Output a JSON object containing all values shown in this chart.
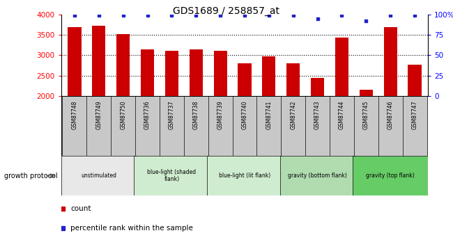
{
  "title": "GDS1689 / 258857_at",
  "samples": [
    "GSM87748",
    "GSM87749",
    "GSM87750",
    "GSM87736",
    "GSM87737",
    "GSM87738",
    "GSM87739",
    "GSM87740",
    "GSM87741",
    "GSM87742",
    "GSM87743",
    "GSM87744",
    "GSM87745",
    "GSM87746",
    "GSM87747"
  ],
  "counts": [
    3680,
    3720,
    3510,
    3140,
    3100,
    3140,
    3100,
    2800,
    2980,
    2800,
    2450,
    3440,
    2160,
    3680,
    2760
  ],
  "percentile_ranks": [
    99,
    99,
    99,
    99,
    99,
    99,
    99,
    99,
    99,
    99,
    95,
    99,
    92,
    99,
    99
  ],
  "bar_color": "#cc0000",
  "dot_color": "#2222cc",
  "ylim_left": [
    2000,
    4000
  ],
  "ylim_right": [
    0,
    100
  ],
  "yticks_left": [
    2000,
    2500,
    3000,
    3500,
    4000
  ],
  "yticks_right": [
    0,
    25,
    50,
    75,
    100
  ],
  "ytick_labels_right": [
    "0",
    "25",
    "50",
    "75",
    "100%"
  ],
  "grid_values": [
    2500,
    3000,
    3500
  ],
  "groups": [
    {
      "label": "unstimulated",
      "indices": [
        0,
        1,
        2
      ],
      "color": "#e8e8e8"
    },
    {
      "label": "blue-light (shaded\nflank)",
      "indices": [
        3,
        4,
        5
      ],
      "color": "#d0ecd0"
    },
    {
      "label": "blue-light (lit flank)",
      "indices": [
        6,
        7,
        8
      ],
      "color": "#d0ecd0"
    },
    {
      "label": "gravity (bottom flank)",
      "indices": [
        9,
        10,
        11
      ],
      "color": "#b0dcb0"
    },
    {
      "label": "gravity (top flank)",
      "indices": [
        12,
        13,
        14
      ],
      "color": "#66cc66"
    }
  ],
  "sample_bg_color": "#c8c8c8",
  "legend_count_color": "#cc0000",
  "legend_dot_color": "#2222cc",
  "growth_protocol_label": "growth protocol",
  "xlabel_count": "count",
  "xlabel_percentile": "percentile rank within the sample",
  "bar_width": 0.55
}
